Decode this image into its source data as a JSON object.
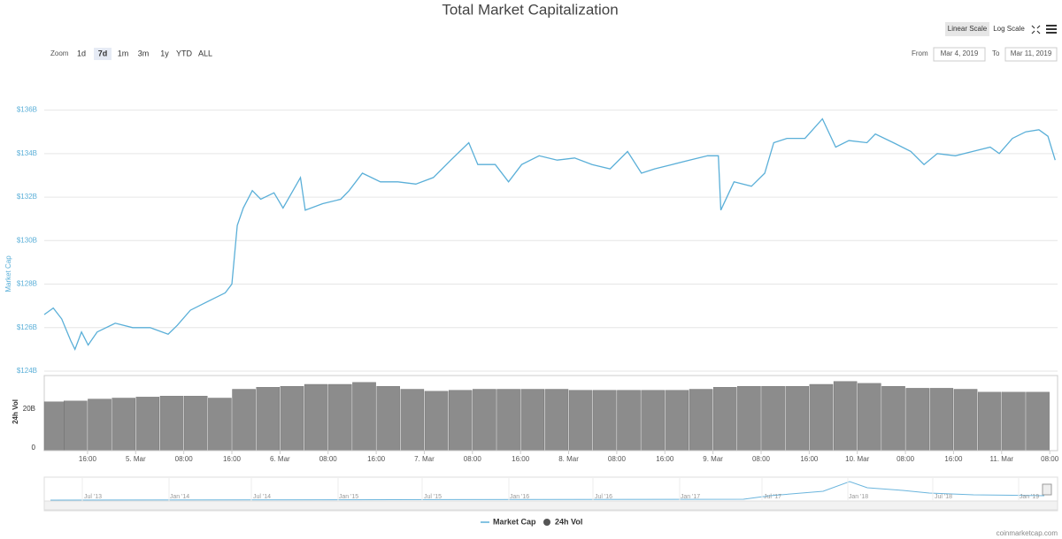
{
  "chart_data": [
    {
      "type": "line",
      "title": "Total Market Capitalization",
      "y_label": "Market Cap",
      "x": [
        8.8,
        10.3,
        11.7,
        13.2,
        13.9,
        15.0,
        16.1,
        17.6,
        20.6,
        23.5,
        26.4,
        29.4,
        30.9,
        33.1,
        36.0,
        38.9,
        40.0,
        40.9,
        41.9,
        43.4,
        44.8,
        47.0,
        48.5,
        51.4,
        52.2,
        55.1,
        58.1,
        59.5,
        61.7,
        64.7,
        67.6,
        70.6,
        73.5,
        76.4,
        79.4,
        80.9,
        83.8,
        86.0,
        88.2,
        91.1,
        94.1,
        97.0,
        99.9,
        102.9,
        105.8,
        108.1,
        110.3,
        113.2,
        116.1,
        119.1,
        120.9,
        121.3,
        123.5,
        126.4,
        128.6,
        130.1,
        132.3,
        135.3,
        138.2,
        140.4,
        142.6,
        145.6,
        147.0,
        150.0,
        152.9,
        155.1,
        157.3,
        160.3,
        163.2,
        166.1,
        167.6,
        169.8,
        172.0,
        174.2,
        175.7,
        176.9
      ],
      "series": [
        {
          "name": "Market Cap",
          "color": "#5aafd8",
          "values": [
            126.6,
            126.9,
            126.4,
            125.4,
            125.0,
            125.8,
            125.2,
            125.8,
            126.2,
            126.0,
            126.0,
            125.7,
            126.1,
            126.8,
            127.2,
            127.6,
            128.0,
            130.7,
            131.5,
            132.3,
            131.9,
            132.2,
            131.5,
            132.9,
            131.4,
            131.7,
            131.9,
            132.3,
            133.1,
            132.7,
            132.7,
            132.6,
            132.9,
            133.7,
            134.5,
            133.5,
            133.5,
            132.7,
            133.5,
            133.9,
            133.7,
            133.8,
            133.5,
            133.3,
            134.1,
            133.1,
            133.3,
            133.5,
            133.7,
            133.9,
            133.9,
            131.4,
            132.7,
            132.5,
            133.1,
            134.5,
            134.7,
            134.7,
            135.6,
            134.3,
            134.6,
            134.5,
            134.9,
            134.5,
            134.1,
            133.5,
            134.0,
            133.9,
            134.1,
            134.3,
            134.0,
            134.7,
            135.0,
            135.1,
            134.8,
            133.7
          ]
        }
      ],
      "xlim": [
        8.8,
        177.3
      ],
      "xticks": [
        {
          "value": 16,
          "label": "16:00"
        },
        {
          "value": 24,
          "label": "5. Mar"
        },
        {
          "value": 32,
          "label": "08:00"
        },
        {
          "value": 40,
          "label": "16:00"
        },
        {
          "value": 48,
          "label": "6. Mar"
        },
        {
          "value": 56,
          "label": "08:00"
        },
        {
          "value": 64,
          "label": "16:00"
        },
        {
          "value": 72,
          "label": "7. Mar"
        },
        {
          "value": 80,
          "label": "08:00"
        },
        {
          "value": 88,
          "label": "16:00"
        },
        {
          "value": 96,
          "label": "8. Mar"
        },
        {
          "value": 104,
          "label": "08:00"
        },
        {
          "value": 112,
          "label": "16:00"
        },
        {
          "value": 120,
          "label": "9. Mar"
        },
        {
          "value": 128,
          "label": "08:00"
        },
        {
          "value": 136,
          "label": "16:00"
        },
        {
          "value": 144,
          "label": "10. Mar"
        },
        {
          "value": 152,
          "label": "08:00"
        },
        {
          "value": 160,
          "label": "16:00"
        },
        {
          "value": 168,
          "label": "11. Mar"
        },
        {
          "value": 176,
          "label": "08:00"
        }
      ],
      "ylim": [
        124,
        137
      ],
      "yticks": [
        {
          "value": 124,
          "label": "$124B"
        },
        {
          "value": 126,
          "label": "$126B"
        },
        {
          "value": 128,
          "label": "$128B"
        },
        {
          "value": 130,
          "label": "$130B"
        },
        {
          "value": 132,
          "label": "$132B"
        },
        {
          "value": 134,
          "label": "$134B"
        },
        {
          "value": 136,
          "label": "$136B"
        }
      ],
      "grid": true
    },
    {
      "type": "bar",
      "y_label": "24h Vol",
      "x": [
        10,
        14,
        18,
        22,
        26,
        30,
        34,
        38,
        42,
        46,
        50,
        54,
        58,
        62,
        66,
        70,
        74,
        78,
        82,
        86,
        90,
        94,
        98,
        102,
        106,
        110,
        114,
        118,
        122,
        126,
        130,
        134,
        138,
        142,
        146,
        150,
        154,
        158,
        162,
        166,
        170,
        174
      ],
      "series": [
        {
          "name": "24h Vol",
          "color": "#8c8c8c",
          "values": [
            23.6,
            24,
            25,
            25.5,
            26,
            26.5,
            26.5,
            25.5,
            30,
            31,
            31.5,
            32.5,
            32.5,
            33.5,
            31.5,
            30,
            29,
            29.5,
            30,
            30,
            30,
            30,
            29.5,
            29.5,
            29.5,
            29.5,
            29.5,
            30,
            31,
            31.5,
            31.5,
            31.5,
            32.5,
            34,
            33,
            31.5,
            30.5,
            30.5,
            30,
            28.5,
            28.5,
            28.5
          ]
        }
      ],
      "xlim": [
        8.8,
        177.3
      ],
      "ylim": [
        0,
        37
      ],
      "yticks": [
        0,
        {
          "value": 20,
          "label": "20B"
        }
      ]
    }
  ],
  "controls": {
    "zoom_label": "Zoom",
    "zoom": [
      "1d",
      "7d",
      "1m",
      "3m",
      "1y",
      "YTD",
      "ALL"
    ],
    "scales": [
      "Linear Scale",
      "Log Scale"
    ],
    "from_label": "From",
    "from": "Mar 4, 2019",
    "to_label": "To",
    "to": "Mar 11, 2019"
  },
  "navigator": {
    "labels": [
      "Jul '13",
      "Jan '14",
      "Jul '14",
      "Jan '15",
      "Jul '15",
      "Jan '16",
      "Jul '16",
      "Jan '17",
      "Jul '17",
      "Jan '18",
      "Jul '18",
      "Jan '19"
    ]
  },
  "credit": "coinmarketcap.com"
}
